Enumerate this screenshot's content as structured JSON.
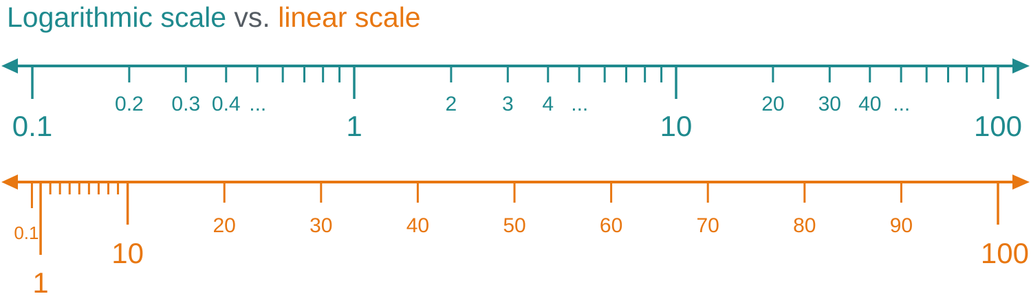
{
  "title": {
    "part1": "Logarithmic scale",
    "part2": " vs. ",
    "part3": "linear scale"
  },
  "colors": {
    "log": "#1f8a8e",
    "linear": "#e87711",
    "neutral": "#555c63"
  },
  "log_scale": {
    "range": [
      0.1,
      100
    ],
    "major": [
      {
        "value": 0.1,
        "label": "0.1"
      },
      {
        "value": 1,
        "label": "1"
      },
      {
        "value": 10,
        "label": "10"
      },
      {
        "value": 100,
        "label": "100"
      }
    ],
    "minor": [
      0.2,
      0.3,
      0.4,
      0.5,
      0.6,
      0.7,
      0.8,
      0.9,
      2,
      3,
      4,
      5,
      6,
      7,
      8,
      9,
      20,
      30,
      40,
      50,
      60,
      70,
      80,
      90
    ],
    "minor_labels": [
      {
        "value": 0.2,
        "label": "0.2"
      },
      {
        "value": 0.3,
        "label": "0.3"
      },
      {
        "value": 0.4,
        "label": "0.4"
      },
      {
        "value": 2,
        "label": "2"
      },
      {
        "value": 3,
        "label": "3"
      },
      {
        "value": 4,
        "label": "4"
      },
      {
        "value": 20,
        "label": "20"
      },
      {
        "value": 30,
        "label": "30"
      },
      {
        "value": 40,
        "label": "40"
      }
    ],
    "ellipses": [
      {
        "after": 0.4,
        "label": "..."
      },
      {
        "after": 4,
        "label": "..."
      },
      {
        "after": 40,
        "label": "..."
      }
    ]
  },
  "linear_scale": {
    "range": [
      0,
      100
    ],
    "major": [
      {
        "value": 1,
        "label": "1"
      },
      {
        "value": 10,
        "label": "10"
      },
      {
        "value": 100,
        "label": "100"
      }
    ],
    "mid": [
      {
        "value": 0.1,
        "label": "0.1"
      },
      {
        "value": 20,
        "label": "20"
      },
      {
        "value": 30,
        "label": "30"
      },
      {
        "value": 40,
        "label": "40"
      },
      {
        "value": 50,
        "label": "50"
      },
      {
        "value": 60,
        "label": "60"
      },
      {
        "value": 70,
        "label": "70"
      },
      {
        "value": 80,
        "label": "80"
      },
      {
        "value": 90,
        "label": "90"
      }
    ],
    "minor": [
      2,
      3,
      4,
      5,
      6,
      7,
      8,
      9
    ]
  }
}
